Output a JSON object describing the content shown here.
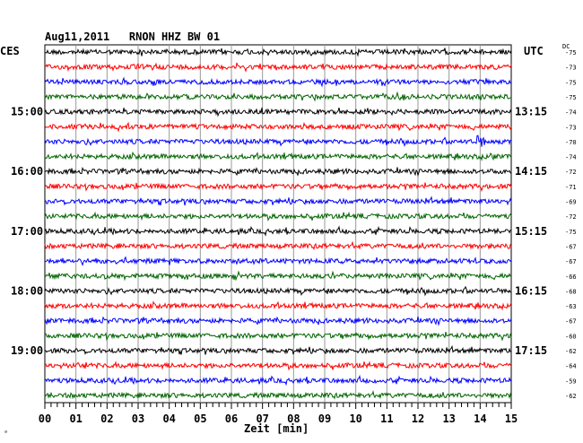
{
  "header": {
    "title": "Aug11,2011   RNON HHZ BW 01",
    "left_tz": "CES",
    "right_tz": "UTC",
    "dc_label": "DC"
  },
  "footer": {
    "corner_mark": "ᵃ"
  },
  "chart_data": {
    "type": "line",
    "title": "Aug11,2011   RNON HHZ BW 01",
    "xlabel": "Zeit [min]",
    "ylabel": "",
    "xlim": [
      0,
      15
    ],
    "x_ticks": [
      "00",
      "01",
      "02",
      "03",
      "04",
      "05",
      "06",
      "07",
      "08",
      "09",
      "10",
      "11",
      "12",
      "13",
      "14",
      "15"
    ],
    "grid": true,
    "trace_colors": [
      "#000000",
      "#ff0000",
      "#0000ff",
      "#006400"
    ],
    "left_time_labels": [
      {
        "row": 4,
        "label": "15:00"
      },
      {
        "row": 8,
        "label": "16:00"
      },
      {
        "row": 12,
        "label": "17:00"
      },
      {
        "row": 16,
        "label": "18:00"
      },
      {
        "row": 20,
        "label": "19:00"
      }
    ],
    "right_time_labels": [
      {
        "row": 4,
        "label": "13:15"
      },
      {
        "row": 8,
        "label": "14:15"
      },
      {
        "row": 12,
        "label": "15:15"
      },
      {
        "row": 16,
        "label": "16:15"
      },
      {
        "row": 20,
        "label": "17:15"
      }
    ],
    "dc_offsets": [
      -75,
      -73,
      -75,
      -75,
      -74,
      -73,
      -70,
      -74,
      -72,
      -71,
      -69,
      -72,
      -75,
      -67,
      -67,
      -66,
      -68,
      -63,
      -67,
      -60,
      -62,
      -64,
      -59,
      -62
    ],
    "events": [
      {
        "row": 6,
        "minute": 14.0,
        "amplitude": 2.6
      },
      {
        "row": 21,
        "minute": 1.2,
        "amplitude": 1.6
      }
    ]
  }
}
